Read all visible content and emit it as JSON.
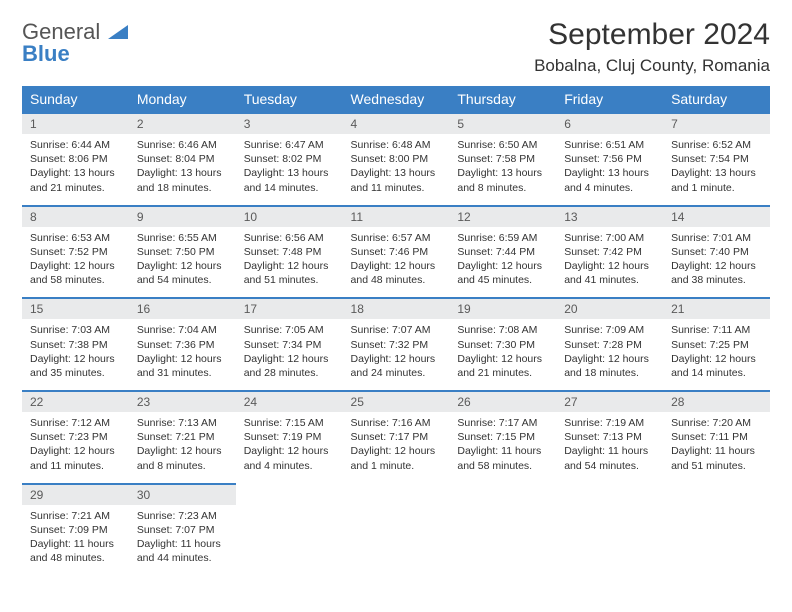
{
  "brand": {
    "part1": "General",
    "part2": "Blue"
  },
  "title": "September 2024",
  "location": "Bobalna, Cluj County, Romania",
  "colors": {
    "accent": "#3a7fc4",
    "header_text": "#ffffff",
    "daynum_bg": "#e9eaeb"
  },
  "day_headers": [
    "Sunday",
    "Monday",
    "Tuesday",
    "Wednesday",
    "Thursday",
    "Friday",
    "Saturday"
  ],
  "weeks": [
    [
      {
        "num": "1",
        "sunrise": "Sunrise: 6:44 AM",
        "sunset": "Sunset: 8:06 PM",
        "day1": "Daylight: 13 hours",
        "day2": "and 21 minutes."
      },
      {
        "num": "2",
        "sunrise": "Sunrise: 6:46 AM",
        "sunset": "Sunset: 8:04 PM",
        "day1": "Daylight: 13 hours",
        "day2": "and 18 minutes."
      },
      {
        "num": "3",
        "sunrise": "Sunrise: 6:47 AM",
        "sunset": "Sunset: 8:02 PM",
        "day1": "Daylight: 13 hours",
        "day2": "and 14 minutes."
      },
      {
        "num": "4",
        "sunrise": "Sunrise: 6:48 AM",
        "sunset": "Sunset: 8:00 PM",
        "day1": "Daylight: 13 hours",
        "day2": "and 11 minutes."
      },
      {
        "num": "5",
        "sunrise": "Sunrise: 6:50 AM",
        "sunset": "Sunset: 7:58 PM",
        "day1": "Daylight: 13 hours",
        "day2": "and 8 minutes."
      },
      {
        "num": "6",
        "sunrise": "Sunrise: 6:51 AM",
        "sunset": "Sunset: 7:56 PM",
        "day1": "Daylight: 13 hours",
        "day2": "and 4 minutes."
      },
      {
        "num": "7",
        "sunrise": "Sunrise: 6:52 AM",
        "sunset": "Sunset: 7:54 PM",
        "day1": "Daylight: 13 hours",
        "day2": "and 1 minute."
      }
    ],
    [
      {
        "num": "8",
        "sunrise": "Sunrise: 6:53 AM",
        "sunset": "Sunset: 7:52 PM",
        "day1": "Daylight: 12 hours",
        "day2": "and 58 minutes."
      },
      {
        "num": "9",
        "sunrise": "Sunrise: 6:55 AM",
        "sunset": "Sunset: 7:50 PM",
        "day1": "Daylight: 12 hours",
        "day2": "and 54 minutes."
      },
      {
        "num": "10",
        "sunrise": "Sunrise: 6:56 AM",
        "sunset": "Sunset: 7:48 PM",
        "day1": "Daylight: 12 hours",
        "day2": "and 51 minutes."
      },
      {
        "num": "11",
        "sunrise": "Sunrise: 6:57 AM",
        "sunset": "Sunset: 7:46 PM",
        "day1": "Daylight: 12 hours",
        "day2": "and 48 minutes."
      },
      {
        "num": "12",
        "sunrise": "Sunrise: 6:59 AM",
        "sunset": "Sunset: 7:44 PM",
        "day1": "Daylight: 12 hours",
        "day2": "and 45 minutes."
      },
      {
        "num": "13",
        "sunrise": "Sunrise: 7:00 AM",
        "sunset": "Sunset: 7:42 PM",
        "day1": "Daylight: 12 hours",
        "day2": "and 41 minutes."
      },
      {
        "num": "14",
        "sunrise": "Sunrise: 7:01 AM",
        "sunset": "Sunset: 7:40 PM",
        "day1": "Daylight: 12 hours",
        "day2": "and 38 minutes."
      }
    ],
    [
      {
        "num": "15",
        "sunrise": "Sunrise: 7:03 AM",
        "sunset": "Sunset: 7:38 PM",
        "day1": "Daylight: 12 hours",
        "day2": "and 35 minutes."
      },
      {
        "num": "16",
        "sunrise": "Sunrise: 7:04 AM",
        "sunset": "Sunset: 7:36 PM",
        "day1": "Daylight: 12 hours",
        "day2": "and 31 minutes."
      },
      {
        "num": "17",
        "sunrise": "Sunrise: 7:05 AM",
        "sunset": "Sunset: 7:34 PM",
        "day1": "Daylight: 12 hours",
        "day2": "and 28 minutes."
      },
      {
        "num": "18",
        "sunrise": "Sunrise: 7:07 AM",
        "sunset": "Sunset: 7:32 PM",
        "day1": "Daylight: 12 hours",
        "day2": "and 24 minutes."
      },
      {
        "num": "19",
        "sunrise": "Sunrise: 7:08 AM",
        "sunset": "Sunset: 7:30 PM",
        "day1": "Daylight: 12 hours",
        "day2": "and 21 minutes."
      },
      {
        "num": "20",
        "sunrise": "Sunrise: 7:09 AM",
        "sunset": "Sunset: 7:28 PM",
        "day1": "Daylight: 12 hours",
        "day2": "and 18 minutes."
      },
      {
        "num": "21",
        "sunrise": "Sunrise: 7:11 AM",
        "sunset": "Sunset: 7:25 PM",
        "day1": "Daylight: 12 hours",
        "day2": "and 14 minutes."
      }
    ],
    [
      {
        "num": "22",
        "sunrise": "Sunrise: 7:12 AM",
        "sunset": "Sunset: 7:23 PM",
        "day1": "Daylight: 12 hours",
        "day2": "and 11 minutes."
      },
      {
        "num": "23",
        "sunrise": "Sunrise: 7:13 AM",
        "sunset": "Sunset: 7:21 PM",
        "day1": "Daylight: 12 hours",
        "day2": "and 8 minutes."
      },
      {
        "num": "24",
        "sunrise": "Sunrise: 7:15 AM",
        "sunset": "Sunset: 7:19 PM",
        "day1": "Daylight: 12 hours",
        "day2": "and 4 minutes."
      },
      {
        "num": "25",
        "sunrise": "Sunrise: 7:16 AM",
        "sunset": "Sunset: 7:17 PM",
        "day1": "Daylight: 12 hours",
        "day2": "and 1 minute."
      },
      {
        "num": "26",
        "sunrise": "Sunrise: 7:17 AM",
        "sunset": "Sunset: 7:15 PM",
        "day1": "Daylight: 11 hours",
        "day2": "and 58 minutes."
      },
      {
        "num": "27",
        "sunrise": "Sunrise: 7:19 AM",
        "sunset": "Sunset: 7:13 PM",
        "day1": "Daylight: 11 hours",
        "day2": "and 54 minutes."
      },
      {
        "num": "28",
        "sunrise": "Sunrise: 7:20 AM",
        "sunset": "Sunset: 7:11 PM",
        "day1": "Daylight: 11 hours",
        "day2": "and 51 minutes."
      }
    ],
    [
      {
        "num": "29",
        "sunrise": "Sunrise: 7:21 AM",
        "sunset": "Sunset: 7:09 PM",
        "day1": "Daylight: 11 hours",
        "day2": "and 48 minutes."
      },
      {
        "num": "30",
        "sunrise": "Sunrise: 7:23 AM",
        "sunset": "Sunset: 7:07 PM",
        "day1": "Daylight: 11 hours",
        "day2": "and 44 minutes."
      },
      null,
      null,
      null,
      null,
      null
    ]
  ]
}
